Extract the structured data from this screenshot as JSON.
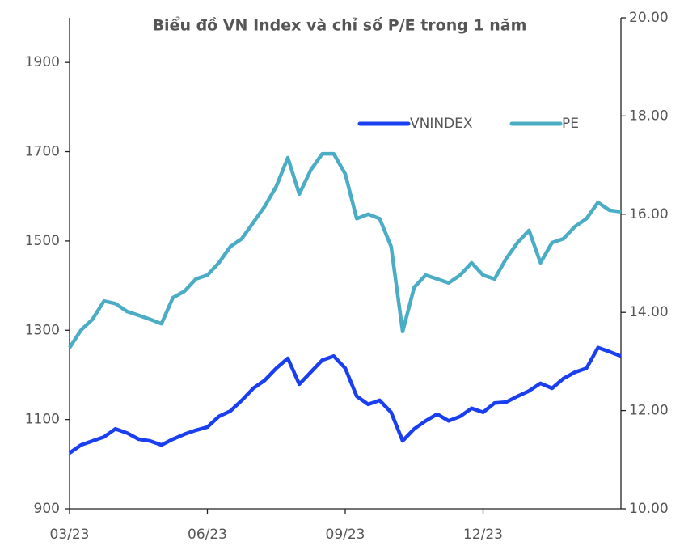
{
  "chart_data": {
    "type": "line",
    "title": "Biểu đồ VN Index và chỉ số P/E trong 1 năm",
    "x": [
      0,
      0.25,
      0.5,
      0.75,
      1,
      1.25,
      1.5,
      1.75,
      2,
      2.25,
      2.5,
      2.75,
      3,
      3.25,
      3.5,
      3.75,
      4,
      4.25,
      4.5,
      4.75,
      5,
      5.25,
      5.5,
      5.75,
      6,
      6.25,
      6.5,
      6.75,
      7,
      7.25,
      7.5,
      7.75,
      8,
      8.25,
      8.5,
      8.75,
      9,
      9.25,
      9.5,
      9.75,
      10,
      10.25,
      10.5,
      10.75,
      11,
      11.25,
      11.5,
      11.75,
      12
    ],
    "xlim": [
      0,
      12
    ],
    "xticks": [
      {
        "value": 0,
        "label": "03/23"
      },
      {
        "value": 3,
        "label": "06/23"
      },
      {
        "value": 6,
        "label": "09/23"
      },
      {
        "value": 9,
        "label": "12/23"
      }
    ],
    "ylim": [
      900,
      2000
    ],
    "yticks": [
      900,
      1100,
      1300,
      1500,
      1700,
      1900
    ],
    "y2lim": [
      10,
      20
    ],
    "y2ticks": [
      {
        "value": 10,
        "label": "10.00"
      },
      {
        "value": 12,
        "label": "12.00"
      },
      {
        "value": 14,
        "label": "14.00"
      },
      {
        "value": 16,
        "label": "16.00"
      },
      {
        "value": 18,
        "label": "18.00"
      },
      {
        "value": 20,
        "label": "20.00"
      }
    ],
    "grid": false,
    "series": [
      {
        "name": "VNINDEX",
        "color": "#1a3ff0",
        "values": [
          1025,
          1043,
          1052,
          1061,
          1079,
          1070,
          1056,
          1052,
          1043,
          1056,
          1067,
          1076,
          1083,
          1107,
          1119,
          1143,
          1170,
          1188,
          1215,
          1237,
          1179,
          1206,
          1233,
          1242,
          1215,
          1152,
          1134,
          1143,
          1116,
          1052,
          1079,
          1097,
          1112,
          1097,
          1107,
          1125,
          1116,
          1137,
          1139,
          1152,
          1164,
          1181,
          1170,
          1192,
          1206,
          1215,
          1261,
          1252,
          1242
        ]
      },
      {
        "name": "PE",
        "color": "#4bacc6",
        "axis": "y2",
        "values": [
          13.28,
          13.64,
          13.86,
          14.23,
          14.18,
          14.02,
          13.94,
          13.86,
          13.77,
          14.3,
          14.43,
          14.68,
          14.76,
          15.01,
          15.34,
          15.5,
          15.83,
          16.16,
          16.57,
          17.15,
          16.41,
          16.9,
          17.23,
          17.23,
          16.82,
          15.91,
          16.0,
          15.91,
          15.34,
          13.61,
          14.51,
          14.76,
          14.68,
          14.6,
          14.76,
          15.01,
          14.76,
          14.68,
          15.09,
          15.42,
          15.67,
          15.01,
          15.42,
          15.5,
          15.75,
          15.91,
          16.24,
          16.08,
          16.05
        ]
      }
    ]
  }
}
